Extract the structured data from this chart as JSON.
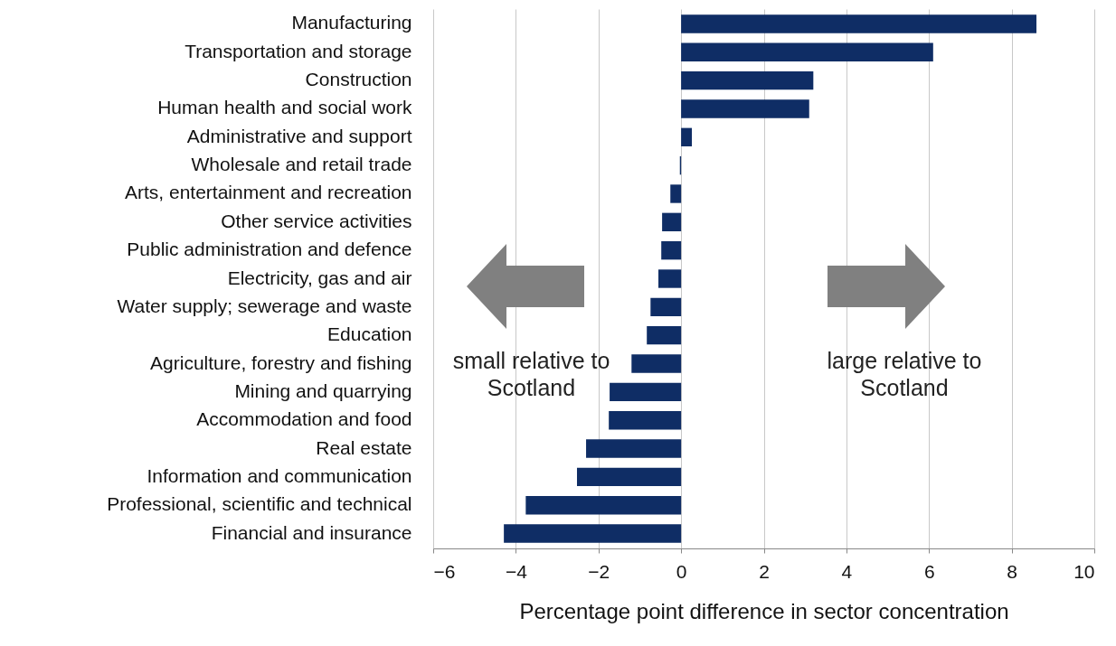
{
  "chart_data": {
    "type": "bar",
    "orientation": "horizontal",
    "xlabel": "Percentage point difference in sector concentration",
    "categories": [
      "Manufacturing",
      "Transportation and storage",
      "Construction",
      "Human health and social work",
      "Administrative and support",
      "Wholesale and retail trade",
      "Arts, entertainment and recreation",
      "Other service activities",
      "Public administration and defence",
      "Electricity, gas and air",
      "Water supply; sewerage and waste",
      "Education",
      "Agriculture, forestry and fishing",
      "Mining and quarrying",
      "Accommodation and food",
      "Real estate",
      "Information and communication",
      "Professional, scientific and technical",
      "Financial and insurance"
    ],
    "values": [
      8.6,
      6.1,
      3.2,
      3.1,
      0.26,
      -0.03,
      -0.26,
      -0.46,
      -0.48,
      -0.55,
      -0.74,
      -0.83,
      -1.2,
      -1.73,
      -1.75,
      -2.3,
      -2.52,
      -3.76,
      -4.29
    ],
    "color": "#0f2d65",
    "xlim": [
      -6,
      10
    ],
    "xticks": [
      -6,
      -4,
      -2,
      0,
      2,
      4,
      6,
      8,
      10
    ],
    "grid": "x",
    "annotations": [
      "small relative to Scotland",
      "large relative to Scotland"
    ]
  }
}
